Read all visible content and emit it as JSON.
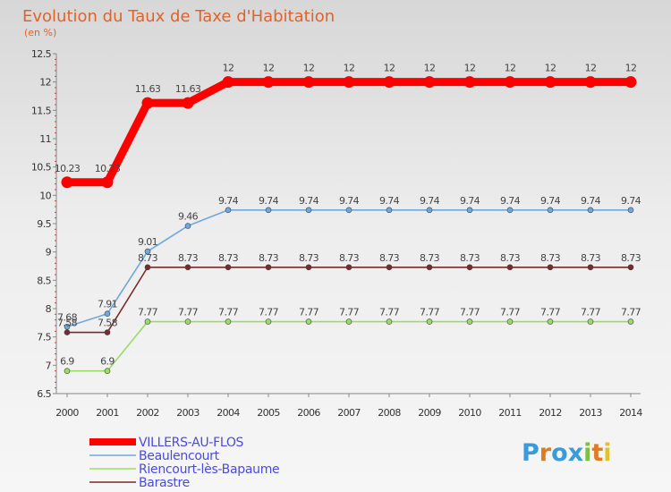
{
  "chart_data": {
    "type": "line",
    "title": "Evolution du Taux de Taxe d'Habitation",
    "subtitle": "(en %)",
    "x": [
      "2000",
      "2001",
      "2002",
      "2003",
      "2004",
      "2005",
      "2006",
      "2007",
      "2008",
      "2009",
      "2010",
      "2011",
      "2012",
      "2013",
      "2014"
    ],
    "y_ticks": [
      "6.5",
      "7",
      "7.5",
      "8",
      "8.5",
      "9",
      "9.5",
      "10",
      "10.5",
      "11",
      "11.5",
      "12",
      "12.5"
    ],
    "ylim": [
      6.5,
      12.5
    ],
    "grid": false,
    "legend_position": "bottom-left",
    "series": [
      {
        "name": "VILLERS-AU-FLOS",
        "color": "#ff0000",
        "values": [
          10.23,
          10.23,
          11.63,
          11.63,
          12,
          12,
          12,
          12,
          12,
          12,
          12,
          12,
          12,
          12,
          12
        ],
        "labels": [
          "10.23",
          "10.23",
          "11.63",
          "11.63",
          "12",
          "12",
          "12",
          "12",
          "12",
          "12",
          "12",
          "12",
          "12",
          "12",
          "12"
        ]
      },
      {
        "name": "Beaulencourt",
        "color": "#6fa8dc",
        "values": [
          7.68,
          7.91,
          9.01,
          9.46,
          9.74,
          9.74,
          9.74,
          9.74,
          9.74,
          9.74,
          9.74,
          9.74,
          9.74,
          9.74,
          9.74
        ],
        "labels": [
          "7.68",
          "7.91",
          "9.01",
          "9.46",
          "9.74",
          "9.74",
          "9.74",
          "9.74",
          "9.74",
          "9.74",
          "9.74",
          "9.74",
          "9.74",
          "9.74",
          "9.74"
        ]
      },
      {
        "name": "Riencourt-lès-Bapaume",
        "color": "#99dd66",
        "values": [
          6.9,
          6.9,
          7.77,
          7.77,
          7.77,
          7.77,
          7.77,
          7.77,
          7.77,
          7.77,
          7.77,
          7.77,
          7.77,
          7.77,
          7.77
        ],
        "labels": [
          "6.9",
          "6.9",
          "7.77",
          "7.77",
          "7.77",
          "7.77",
          "7.77",
          "7.77",
          "7.77",
          "7.77",
          "7.77",
          "7.77",
          "7.77",
          "7.77",
          "7.77"
        ]
      },
      {
        "name": "Barastre",
        "color": "#7a2a2a",
        "values": [
          7.58,
          7.58,
          8.73,
          8.73,
          8.73,
          8.73,
          8.73,
          8.73,
          8.73,
          8.73,
          8.73,
          8.73,
          8.73,
          8.73,
          8.73
        ],
        "labels": [
          "7.58",
          "7.58",
          "8.73",
          "8.73",
          "8.73",
          "8.73",
          "8.73",
          "8.73",
          "8.73",
          "8.73",
          "8.73",
          "8.73",
          "8.73",
          "8.73",
          "8.73"
        ]
      }
    ]
  },
  "logo": {
    "text": "Proxiti",
    "letters": [
      "P",
      "r",
      "o",
      "x",
      "i",
      "t",
      "i"
    ],
    "colors": [
      "#3a9bd8",
      "#e07b1f",
      "#3a9bd8",
      "#3a9bd8",
      "#7fbf3f",
      "#e07b1f",
      "#e2c22a"
    ]
  }
}
